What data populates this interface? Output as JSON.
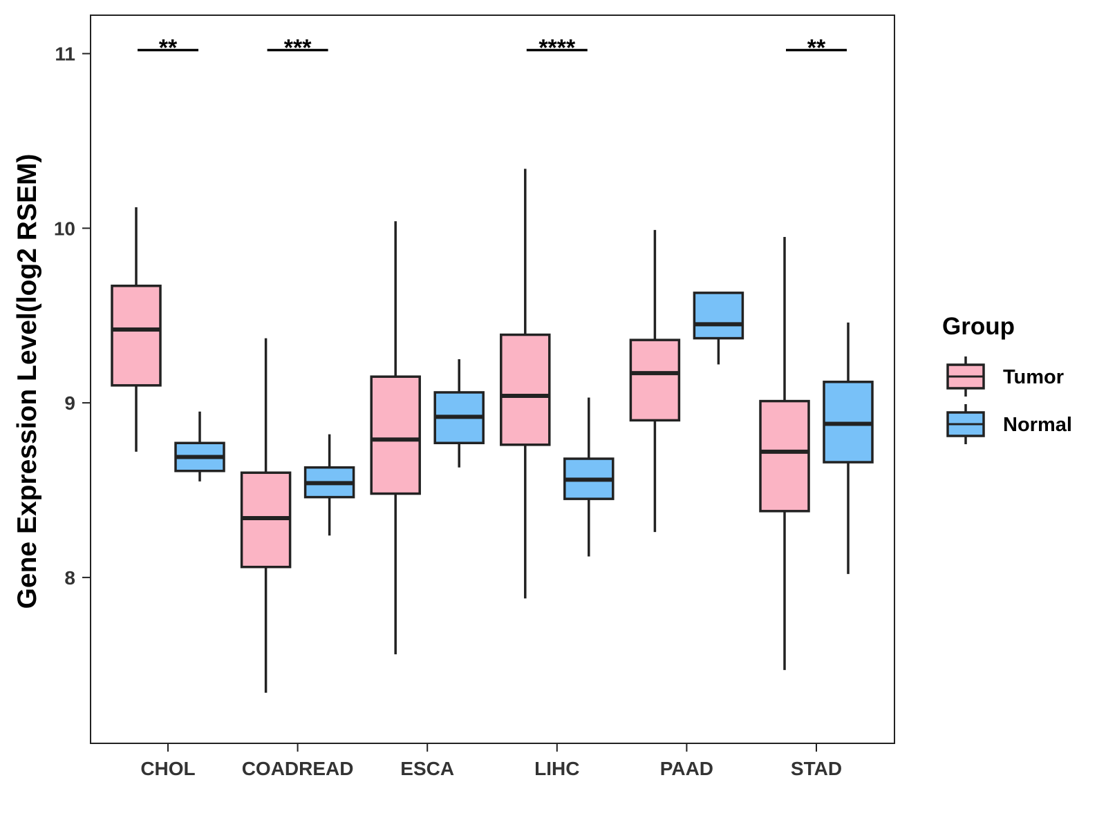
{
  "chart_data": {
    "type": "box",
    "title": "",
    "xlabel": "",
    "ylabel": "Gene Expression Level(log2 RSEM)",
    "ylim": [
      7.05,
      11.22
    ],
    "yticks": [
      8,
      9,
      10,
      11
    ],
    "categories": [
      "CHOL",
      "COADREAD",
      "ESCA",
      "LIHC",
      "PAAD",
      "STAD"
    ],
    "series": [
      {
        "name": "Tumor",
        "color": "#FBB4C4",
        "boxes": [
          {
            "min": 8.72,
            "q1": 9.1,
            "median": 9.42,
            "q3": 9.67,
            "max": 10.12
          },
          {
            "min": 7.34,
            "q1": 8.06,
            "median": 8.34,
            "q3": 8.6,
            "max": 9.37
          },
          {
            "min": 7.56,
            "q1": 8.48,
            "median": 8.79,
            "q3": 9.15,
            "max": 10.04
          },
          {
            "min": 7.88,
            "q1": 8.76,
            "median": 9.04,
            "q3": 9.39,
            "max": 10.34
          },
          {
            "min": 8.26,
            "q1": 8.9,
            "median": 9.17,
            "q3": 9.36,
            "max": 9.99
          },
          {
            "min": 7.47,
            "q1": 8.38,
            "median": 8.72,
            "q3": 9.01,
            "max": 9.95
          }
        ]
      },
      {
        "name": "Normal",
        "color": "#78C1F8",
        "boxes": [
          {
            "min": 8.55,
            "q1": 8.61,
            "median": 8.69,
            "q3": 8.77,
            "max": 8.95
          },
          {
            "min": 8.24,
            "q1": 8.46,
            "median": 8.54,
            "q3": 8.63,
            "max": 8.82
          },
          {
            "min": 8.63,
            "q1": 8.77,
            "median": 8.92,
            "q3": 9.06,
            "max": 9.25
          },
          {
            "min": 8.12,
            "q1": 8.45,
            "median": 8.56,
            "q3": 8.68,
            "max": 9.03
          },
          {
            "min": 9.22,
            "q1": 9.37,
            "median": 9.45,
            "q3": 9.63,
            "max": 9.63
          },
          {
            "min": 8.02,
            "q1": 8.66,
            "median": 8.88,
            "q3": 9.12,
            "max": 9.46
          }
        ]
      }
    ],
    "significance": [
      {
        "category": "CHOL",
        "label": "**",
        "y": 11.02
      },
      {
        "category": "COADREAD",
        "label": "***",
        "y": 11.02
      },
      {
        "category": "LIHC",
        "label": "****",
        "y": 11.02
      },
      {
        "category": "STAD",
        "label": "**",
        "y": 11.02
      }
    ],
    "legend": {
      "title": "Group",
      "position": "right",
      "entries": [
        "Tumor",
        "Normal"
      ]
    },
    "grid": false
  }
}
